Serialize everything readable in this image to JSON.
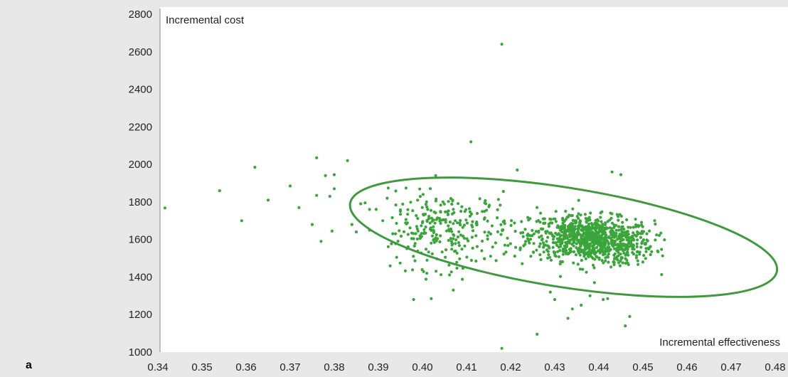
{
  "panel_label": "a",
  "colors": {
    "background": "#e8e8e8",
    "plot_area": "#ffffff",
    "points": "#3aa53a",
    "ellipse": "#3f9a3f",
    "axis": "#888888"
  },
  "chart_data": {
    "type": "scatter",
    "title": "",
    "xlabel": "Incremental effectiveness",
    "ylabel": "Incremental cost",
    "xlim": [
      0.34,
      0.48
    ],
    "ylim": [
      1000,
      2800
    ],
    "xticks": [
      "0.34",
      "0.35",
      "0.36",
      "0.37",
      "0.38",
      "0.39",
      "0.40",
      "0.41",
      "0.42",
      "0.43",
      "0.44",
      "0.45",
      "0.46",
      "0.47",
      "0.48"
    ],
    "yticks": [
      "1000",
      "1200",
      "1400",
      "1600",
      "1800",
      "2000",
      "2200",
      "2400",
      "2600",
      "2800"
    ],
    "grid": false,
    "legend": "none",
    "ellipse": {
      "cx": 0.432,
      "cy": 1612,
      "rx": 0.049,
      "ry": 265,
      "rotation_deg": 9
    },
    "series": [
      {
        "points": [
          [
            0.3416,
            1768
          ],
          [
            0.354,
            1860
          ],
          [
            0.359,
            1700
          ],
          [
            0.362,
            1985
          ],
          [
            0.365,
            1810
          ],
          [
            0.37,
            1885
          ],
          [
            0.372,
            1770
          ],
          [
            0.375,
            1680
          ],
          [
            0.376,
            2035
          ],
          [
            0.376,
            1835
          ],
          [
            0.377,
            1590
          ],
          [
            0.378,
            1940
          ],
          [
            0.379,
            1830
          ],
          [
            0.3795,
            1645
          ],
          [
            0.38,
            1945
          ],
          [
            0.38,
            1870
          ],
          [
            0.383,
            2020
          ],
          [
            0.384,
            1680
          ],
          [
            0.385,
            1640
          ],
          [
            0.386,
            1790
          ],
          [
            0.387,
            1795
          ],
          [
            0.388,
            1650
          ],
          [
            0.388,
            1760
          ],
          [
            0.3895,
            1760
          ],
          [
            0.391,
            1700
          ],
          [
            0.392,
            1820
          ],
          [
            0.395,
            1750
          ],
          [
            0.398,
            1280
          ],
          [
            0.401,
            1420
          ],
          [
            0.402,
            1285
          ],
          [
            0.403,
            1940
          ],
          [
            0.407,
            1330
          ],
          [
            0.411,
            2120
          ],
          [
            0.418,
            2640
          ],
          [
            0.418,
            1020
          ],
          [
            0.4215,
            1970
          ],
          [
            0.426,
            1095
          ],
          [
            0.43,
            1280
          ],
          [
            0.433,
            1180
          ],
          [
            0.434,
            1230
          ],
          [
            0.436,
            1250
          ],
          [
            0.439,
            1370
          ],
          [
            0.441,
            1280
          ],
          [
            0.442,
            1285
          ],
          [
            0.443,
            1960
          ],
          [
            0.445,
            1945
          ],
          [
            0.446,
            1140
          ],
          [
            0.447,
            1190
          ],
          [
            0.438,
            1300
          ],
          [
            0.429,
            1320
          ]
        ]
      }
    ],
    "cloud": {
      "count": 900,
      "center": [
        0.4385,
        1600
      ],
      "spread": [
        0.007,
        62
      ],
      "tail_center": [
        0.405,
        1650
      ],
      "tail_spread": [
        0.008,
        100
      ],
      "tail_count": 280,
      "x_range": [
        0.392,
        0.455
      ],
      "y_range": [
        1380,
        1880
      ]
    }
  }
}
